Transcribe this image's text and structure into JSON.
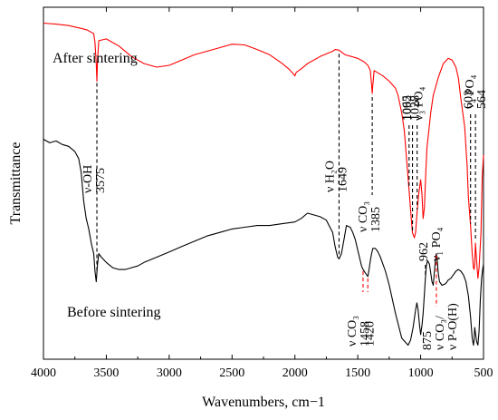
{
  "chart_data": {
    "type": "line",
    "title": "",
    "xlabel": "Wavenumbers, cm−1",
    "ylabel": "Transmittance",
    "xlim": [
      4000,
      500
    ],
    "x_reversed": true,
    "y_ticks_shown": false,
    "grid": false,
    "legend": "none",
    "x_ticks": [
      4000,
      3500,
      3000,
      2500,
      2000,
      1500,
      1000,
      500
    ],
    "series": [
      {
        "name": "After sintering",
        "color": "#ff0000",
        "x": [
          4000,
          3900,
          3800,
          3700,
          3650,
          3600,
          3590,
          3580,
          3575,
          3570,
          3560,
          3500,
          3400,
          3300,
          3200,
          3100,
          3000,
          2900,
          2800,
          2700,
          2600,
          2500,
          2400,
          2300,
          2200,
          2100,
          2050,
          2010,
          2000,
          1990,
          1950,
          1900,
          1800,
          1700,
          1680,
          1649,
          1620,
          1600,
          1500,
          1450,
          1420,
          1400,
          1390,
          1385,
          1380,
          1370,
          1300,
          1250,
          1200,
          1180,
          1150,
          1130,
          1110,
          1092,
          1075,
          1065,
          1050,
          1040,
          1028,
          1015,
          1000,
          990,
          980,
          970,
          960,
          950,
          920,
          900,
          860,
          820,
          780,
          750,
          720,
          700,
          680,
          650,
          630,
          620,
          603,
          590,
          580,
          575,
          570,
          564,
          555,
          545,
          535,
          520,
          510,
          500
        ],
        "y": [
          95.5,
          95.2,
          94.8,
          94.0,
          93.5,
          92.5,
          90,
          84,
          79,
          85,
          90.5,
          91,
          89,
          86,
          84,
          83,
          83.5,
          85,
          86.5,
          87.5,
          88.5,
          89.5,
          89.3,
          88,
          86.5,
          84,
          82.5,
          81,
          80.5,
          81.5,
          82.5,
          84,
          86,
          87.5,
          88,
          87.8,
          87,
          86.5,
          85.5,
          84.5,
          83.5,
          82,
          78,
          75.5,
          78,
          82,
          80.5,
          79,
          77,
          75,
          70,
          65,
          56,
          48,
          40,
          36,
          34.5,
          36,
          42,
          47,
          51,
          47,
          40,
          43,
          52,
          60,
          70,
          75,
          80,
          84,
          85.5,
          85,
          83,
          80,
          74,
          66,
          55,
          46,
          38,
          30,
          26,
          25.5,
          27,
          33,
          28,
          23,
          26,
          36,
          52,
          58
        ]
      },
      {
        "name": "Before sintering",
        "color": "#000000",
        "x": [
          4000,
          3950,
          3900,
          3850,
          3800,
          3750,
          3720,
          3700,
          3680,
          3660,
          3640,
          3620,
          3600,
          3590,
          3580,
          3570,
          3560,
          3540,
          3500,
          3450,
          3400,
          3350,
          3300,
          3250,
          3200,
          3100,
          3000,
          2900,
          2800,
          2700,
          2600,
          2500,
          2400,
          2300,
          2200,
          2100,
          2000,
          1950,
          1900,
          1850,
          1800,
          1750,
          1700,
          1680,
          1660,
          1649,
          1630,
          1610,
          1590,
          1560,
          1540,
          1520,
          1500,
          1480,
          1470,
          1458,
          1440,
          1430,
          1420,
          1410,
          1400,
          1390,
          1380,
          1360,
          1340,
          1320,
          1300,
          1280,
          1250,
          1200,
          1150,
          1100,
          1080,
          1060,
          1040,
          1030,
          1020,
          1010,
          1000,
          990,
          980,
          970,
          962,
          955,
          945,
          930,
          910,
          900,
          890,
          880,
          875,
          868,
          860,
          850,
          830,
          800,
          780,
          760,
          740,
          720,
          700,
          680,
          660,
          640,
          620,
          603,
          590,
          580,
          575,
          570,
          564,
          555,
          545,
          535,
          525,
          515,
          505,
          500
        ],
        "y": [
          62.5,
          61.5,
          62,
          61,
          60.5,
          59,
          57,
          53,
          45,
          40,
          37,
          33,
          30,
          25,
          22,
          27,
          30,
          29,
          27.5,
          26,
          25.5,
          25.5,
          26,
          26.5,
          27.5,
          29,
          30.5,
          32,
          33.5,
          35,
          36,
          37,
          37.5,
          38,
          38,
          38.5,
          39,
          40,
          41.5,
          41,
          40.5,
          39.5,
          36,
          32,
          29,
          28.5,
          30,
          34,
          38,
          37.5,
          36,
          34,
          31,
          28,
          26.5,
          25.5,
          24.5,
          24,
          23.5,
          25.5,
          28,
          30,
          31.5,
          31.5,
          30.5,
          29,
          27,
          25,
          21,
          13,
          6,
          4,
          5.5,
          9,
          14,
          16,
          14,
          10,
          7,
          9.5,
          13,
          18.5,
          23,
          26.5,
          28,
          27,
          22,
          21,
          25,
          29,
          30,
          28,
          24.5,
          22,
          21,
          21.5,
          22.5,
          23,
          24,
          25,
          25.5,
          25,
          24,
          22,
          18,
          12,
          6,
          4,
          5.5,
          9,
          7.5,
          5,
          4,
          8,
          17,
          23,
          26,
          27
        ]
      }
    ],
    "series_labels": [
      {
        "name": "After sintering",
        "anchor_x": 3750,
        "anchor_y": 98.5
      },
      {
        "name": "Before sintering",
        "anchor_x": 3630,
        "anchor_y": 10.5
      }
    ],
    "annotations": [
      {
        "text": "ν-OH",
        "x": 3575,
        "series": 0,
        "color": "#000000"
      },
      {
        "text": "3575",
        "x": 3575,
        "series": 0,
        "color": "#000000"
      },
      {
        "text": "ν H₂O",
        "x": 1649,
        "series": 0,
        "color": "#000000"
      },
      {
        "text": "1649",
        "x": 1649,
        "series": 0,
        "color": "#000000"
      },
      {
        "text": "ν CO₃",
        "x": 1385,
        "series": 0,
        "color": "#000000"
      },
      {
        "text": "1385",
        "x": 1385,
        "series": 0,
        "color": "#000000"
      },
      {
        "text": "1092",
        "x": 1092,
        "series": 0,
        "color": "#000000"
      },
      {
        "text": "1065",
        "x": 1065,
        "series": 0,
        "color": "#000000"
      },
      {
        "text": "ν₃ PO₄",
        "x": 1050,
        "series": 0,
        "color": "#000000"
      },
      {
        "text": "1028",
        "x": 1028,
        "series": 0,
        "color": "#000000"
      },
      {
        "text": "603",
        "x": 603,
        "series": 0,
        "color": "#000000"
      },
      {
        "text": "ν₄ PO₄",
        "x": 585,
        "series": 0,
        "color": "#000000"
      },
      {
        "text": "564",
        "x": 564,
        "series": 0,
        "color": "#000000"
      },
      {
        "text": "962",
        "x": 962,
        "series": 1,
        "color": "#000000"
      },
      {
        "text": "ν₁ PO₄",
        "x": 962,
        "series": 1,
        "color": "#000000"
      },
      {
        "text": "ν CO₃",
        "x": 1458,
        "series": 1,
        "color": "#ff0000"
      },
      {
        "text": "1458",
        "x": 1458,
        "series": 1,
        "color": "#ff0000"
      },
      {
        "text": "1420",
        "x": 1420,
        "series": 1,
        "color": "#ff0000"
      },
      {
        "text": "875",
        "x": 875,
        "series": 1,
        "color": "#ff0000"
      },
      {
        "text": "ν CO₃/",
        "x": 875,
        "series": 1,
        "color": "#ff0000"
      },
      {
        "text": "ν P-O(H)",
        "x": 875,
        "series": 1,
        "color": "#ff0000"
      }
    ]
  }
}
